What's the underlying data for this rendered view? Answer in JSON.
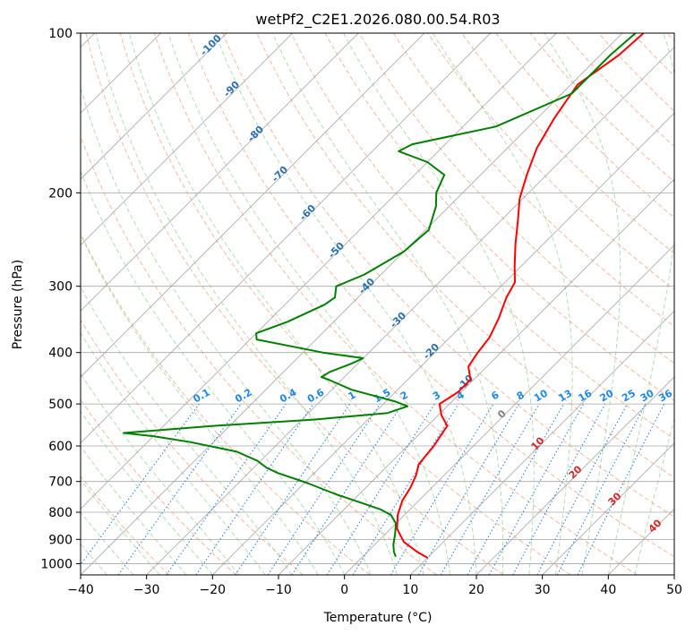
{
  "chart_data": {
    "type": "line",
    "chart_kind": "skew-t log-p",
    "title": "wetPf2_C2E1.2026.080.00.54.R03",
    "xlabel": "Temperature (°C)",
    "ylabel": "Pressure (hPa)",
    "xlim": [
      -40,
      50
    ],
    "ylim": [
      1050,
      100
    ],
    "y_scale": "log",
    "grid": true,
    "x_ticks": [
      -40,
      -30,
      -20,
      -10,
      0,
      10,
      20,
      30,
      40,
      50
    ],
    "y_ticks": [
      100,
      200,
      300,
      400,
      500,
      600,
      700,
      800,
      900,
      1000
    ],
    "colors": {
      "temperature": "#ff0000",
      "dewpoint": "#008000",
      "dry_adiabat": "#f4a582",
      "moist_adiabat": "#8fcf8f",
      "mixing_ratio": "#1f77e0",
      "isotherm_grid": "#a6a6a6",
      "hpa_label": "#2a6fb0",
      "mixing_label": "#1e88e5",
      "iso_label_red": "#d62728",
      "iso_label_gray": "#7f7f7f"
    },
    "height_labels": [
      "-100",
      "-90",
      "-80",
      "-70",
      "-60",
      "-50",
      "-40",
      "-30",
      "-20",
      "-10"
    ],
    "mixing_ratio_labels": [
      "0.1",
      "0.2",
      "0.4",
      "0.6",
      "1",
      "1.5",
      "2",
      "3",
      "4",
      "6",
      "8",
      "10",
      "13",
      "16",
      "20",
      "25",
      "30",
      "36"
    ],
    "isotherm_labels": [
      "0",
      "10",
      "20",
      "30",
      "40"
    ],
    "series": [
      {
        "name": "Temperature",
        "points": [
          [
            -36.8,
            100
          ],
          [
            -37.2,
            110
          ],
          [
            -39.0,
            125
          ],
          [
            -37.4,
            145
          ],
          [
            -35.5,
            165
          ],
          [
            -33.0,
            185
          ],
          [
            -30.5,
            205
          ],
          [
            -27.5,
            225
          ],
          [
            -24.2,
            250
          ],
          [
            -21.0,
            275
          ],
          [
            -18.5,
            295
          ],
          [
            -17.5,
            315
          ],
          [
            -15.5,
            345
          ],
          [
            -14.0,
            375
          ],
          [
            -13.5,
            400
          ],
          [
            -12.8,
            425
          ],
          [
            -10.5,
            450
          ],
          [
            -10.5,
            475
          ],
          [
            -11.5,
            500
          ],
          [
            -9.5,
            525
          ],
          [
            -7.0,
            550
          ],
          [
            -6.5,
            575
          ],
          [
            -6.0,
            600
          ],
          [
            -5.5,
            650
          ],
          [
            -4.3,
            680
          ],
          [
            -3.2,
            720
          ],
          [
            -2.5,
            760
          ],
          [
            -1.0,
            810
          ],
          [
            1.0,
            860
          ],
          [
            4.0,
            910
          ],
          [
            7.5,
            950
          ],
          [
            10.0,
            975
          ]
        ]
      },
      {
        "name": "Dewpoint",
        "points": [
          [
            -38.0,
            100
          ],
          [
            -38.5,
            110
          ],
          [
            -38.5,
            130
          ],
          [
            -45.0,
            150
          ],
          [
            -55.0,
            162
          ],
          [
            -56.0,
            167
          ],
          [
            -50.0,
            175
          ],
          [
            -45.5,
            185
          ],
          [
            -44.0,
            200
          ],
          [
            -42.0,
            212
          ],
          [
            -39.5,
            235
          ],
          [
            -40.0,
            258
          ],
          [
            -42.5,
            285
          ],
          [
            -45.0,
            300
          ],
          [
            -43.5,
            315
          ],
          [
            -44.0,
            325
          ],
          [
            -47.0,
            350
          ],
          [
            -50.0,
            368
          ],
          [
            -49.0,
            378
          ],
          [
            -37.0,
            400
          ],
          [
            -30.0,
            410
          ],
          [
            -31.0,
            420
          ],
          [
            -33.0,
            435
          ],
          [
            -33.5,
            445
          ],
          [
            -32.0,
            450
          ],
          [
            -27.0,
            470
          ],
          [
            -18.5,
            495
          ],
          [
            -16.0,
            505
          ],
          [
            -18.0,
            520
          ],
          [
            -28.0,
            535
          ],
          [
            -42.5,
            550
          ],
          [
            -55.0,
            567
          ],
          [
            -50.0,
            575
          ],
          [
            -43.5,
            590
          ],
          [
            -35.0,
            615
          ],
          [
            -30.5,
            640
          ],
          [
            -28.0,
            660
          ],
          [
            -25.5,
            675
          ],
          [
            -19.5,
            705
          ],
          [
            -13.5,
            740
          ],
          [
            -8.0,
            770
          ],
          [
            -4.5,
            790
          ],
          [
            -2.0,
            810
          ],
          [
            0.0,
            840
          ],
          [
            1.5,
            880
          ],
          [
            2.8,
            920
          ],
          [
            4.0,
            950
          ],
          [
            5.0,
            970
          ]
        ]
      }
    ]
  }
}
